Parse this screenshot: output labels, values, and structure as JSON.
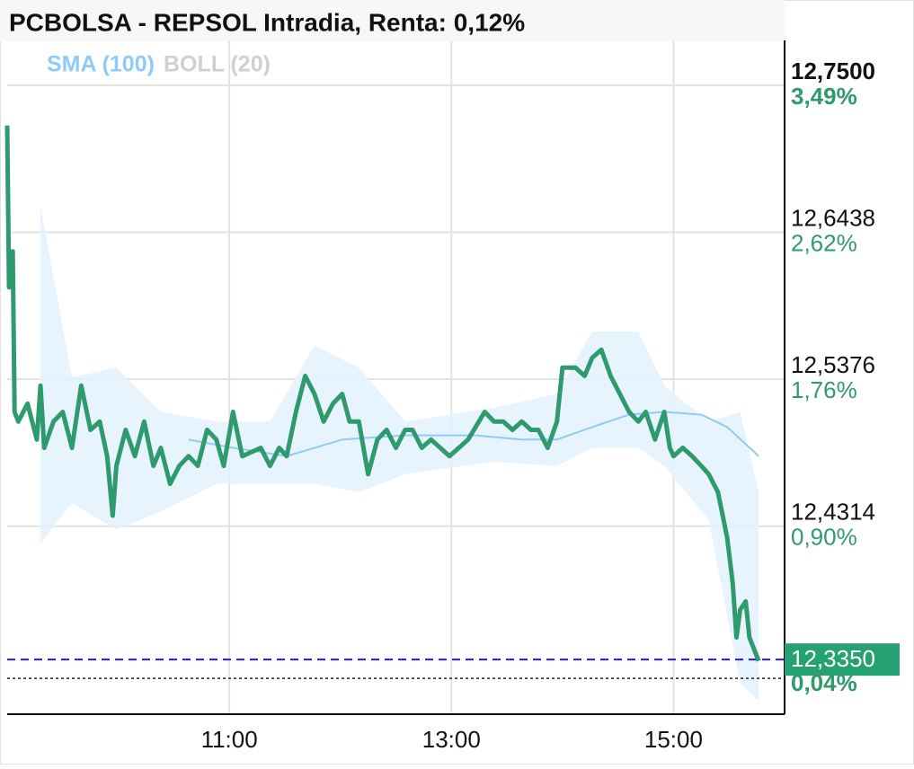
{
  "chart_data": {
    "type": "line",
    "title": "PCBOLSA - REPSOL Intradia, Renta: 0,12%",
    "xlim": [
      540,
      960
    ],
    "xticks": [
      {
        "value": 660,
        "label": "11:00"
      },
      {
        "value": 780,
        "label": "13:00"
      },
      {
        "value": 900,
        "label": "15:00"
      }
    ],
    "ylim": [
      12.2955,
      12.7825
    ],
    "yticks": [
      {
        "value": 12.75,
        "label": "12,7500"
      },
      {
        "value": 12.6438,
        "label": "12,6438"
      },
      {
        "value": 12.5376,
        "label": "12,5376"
      },
      {
        "value": 12.4314,
        "label": "12,4314"
      }
    ],
    "ytick_percent_labels": [
      "3,49%",
      "2,62%",
      "1,76%",
      "0,90%"
    ],
    "grid": true,
    "series": [
      {
        "color": "#2e9a6e",
        "x": [
          540,
          541,
          543,
          544,
          546,
          551,
          556,
          558,
          560,
          565,
          570,
          575,
          580,
          585,
          590,
          594,
          597,
          599,
          604,
          609,
          614,
          619,
          623,
          628,
          633,
          638,
          643,
          648,
          653,
          657,
          662,
          667,
          677,
          682,
          687,
          691,
          696,
          701,
          706,
          711,
          716,
          721,
          725,
          730,
          735,
          740,
          745,
          750,
          755,
          759,
          764,
          769,
          779,
          789,
          798,
          803,
          808,
          813,
          818,
          823,
          827,
          832,
          837,
          840,
          847,
          852,
          856,
          861,
          866,
          871,
          876,
          881,
          885,
          890,
          895,
          898,
          900,
          905,
          910,
          915,
          919,
          924,
          929,
          932,
          934,
          936,
          939,
          941,
          946
        ],
        "values": [
          12.721,
          12.604,
          12.63,
          12.514,
          12.507,
          12.52,
          12.494,
          12.533,
          12.488,
          12.507,
          12.514,
          12.488,
          12.533,
          12.501,
          12.507,
          12.482,
          12.439,
          12.475,
          12.501,
          12.482,
          12.507,
          12.475,
          12.488,
          12.462,
          12.475,
          12.482,
          12.475,
          12.501,
          12.494,
          12.475,
          12.514,
          12.482,
          12.488,
          12.475,
          12.488,
          12.482,
          12.514,
          12.54,
          12.527,
          12.507,
          12.52,
          12.527,
          12.507,
          12.507,
          12.469,
          12.494,
          12.501,
          12.488,
          12.501,
          12.501,
          12.488,
          12.494,
          12.482,
          12.494,
          12.514,
          12.507,
          12.507,
          12.501,
          12.507,
          12.501,
          12.501,
          12.488,
          12.507,
          12.546,
          12.546,
          12.54,
          12.553,
          12.559,
          12.54,
          12.527,
          12.514,
          12.507,
          12.514,
          12.494,
          12.514,
          12.488,
          12.482,
          12.488,
          12.482,
          12.475,
          12.469,
          12.456,
          12.423,
          12.39,
          12.351,
          12.371,
          12.377,
          12.351,
          12.334
        ]
      },
      {
        "name": "SMA (100)",
        "color": "#90caf9",
        "x": [
          638,
          662,
          691,
          721,
          755,
          793,
          818,
          837,
          856,
          876,
          895,
          915,
          929,
          946
        ],
        "values": [
          12.494,
          12.488,
          12.482,
          12.494,
          12.497,
          12.497,
          12.494,
          12.494,
          12.503,
          12.512,
          12.514,
          12.512,
          12.503,
          12.482
        ]
      }
    ],
    "bands": [
      {
        "name": "BOLL (20)",
        "legend_color": "#d0d0d0",
        "color": "#e3f2fd",
        "x": [
          558,
          575,
          599,
          623,
          653,
          682,
          706,
          730,
          755,
          803,
          837,
          856,
          881,
          895,
          919,
          936,
          946
        ],
        "upper": [
          12.662,
          12.539,
          12.546,
          12.514,
          12.507,
          12.507,
          12.562,
          12.546,
          12.507,
          12.517,
          12.527,
          12.572,
          12.572,
          12.533,
          12.507,
          12.514,
          12.456
        ],
        "lower": [
          12.419,
          12.448,
          12.429,
          12.442,
          12.462,
          12.462,
          12.462,
          12.456,
          12.469,
          12.478,
          12.475,
          12.488,
          12.488,
          12.475,
          12.436,
          12.318,
          12.305
        ]
      }
    ],
    "last_price": {
      "value": 12.335,
      "label": "12,3350",
      "color": "#26a173"
    },
    "last_change_label": "0,04%",
    "reference_line": 12.3214
  }
}
